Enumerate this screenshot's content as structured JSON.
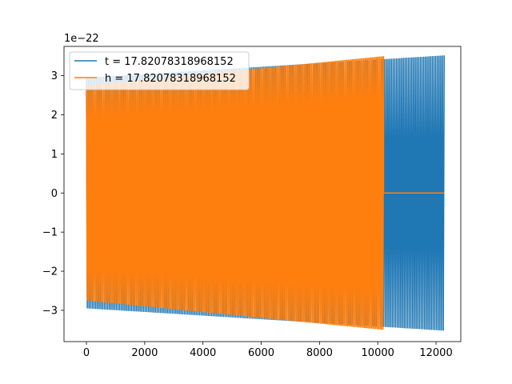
{
  "chart_data": {
    "type": "line",
    "title": "",
    "xlabel": "",
    "ylabel": "",
    "y_offset_label": "1e−22",
    "xlim": [
      -770,
      12850
    ],
    "ylim": [
      -3.8,
      3.75
    ],
    "x_ticks": [
      0,
      2000,
      4000,
      6000,
      8000,
      10000,
      12000
    ],
    "x_tick_labels": [
      "0",
      "2000",
      "4000",
      "6000",
      "8000",
      "10000",
      "12000"
    ],
    "y_ticks": [
      -3,
      -2,
      -1,
      0,
      1,
      2,
      3
    ],
    "y_tick_labels": [
      "−3",
      "−2",
      "−1",
      "0",
      "1",
      "2",
      "3"
    ],
    "grid": false,
    "legend_position": "top-left",
    "series": [
      {
        "name": "t = 17.82078318968152",
        "color": "#1f77b4",
        "x_start": 0,
        "x_end": 12280,
        "oscillating": true,
        "amplitude_start": 2.95,
        "amplitude_end": 3.52
      },
      {
        "name": "h = 17.82078318968152",
        "color": "#ff7f0e",
        "x_start": 0,
        "x_end": 10200,
        "oscillating": true,
        "amplitude_start": 2.75,
        "amplitude_end": 3.5,
        "tail_x_end": 12280,
        "tail_value": 0
      }
    ]
  }
}
